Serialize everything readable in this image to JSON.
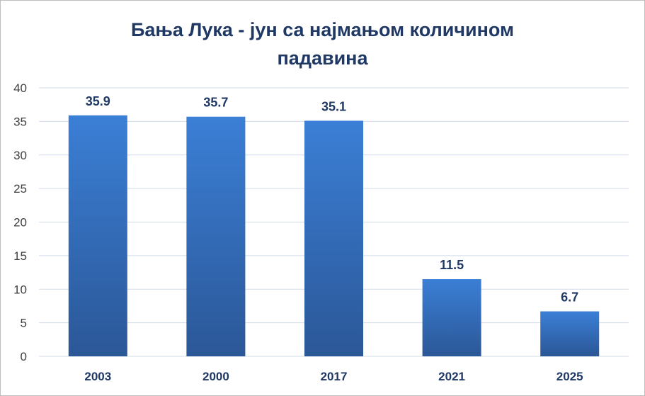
{
  "chart_data": {
    "type": "bar",
    "title_lines": [
      "Бања Лука - јун са најмањом количином",
      "падавина"
    ],
    "categories": [
      "2003",
      "2000",
      "2017",
      "2021",
      "2025"
    ],
    "values": [
      35.9,
      35.7,
      35.1,
      11.5,
      6.7
    ],
    "data_labels": [
      "35.9",
      "35.7",
      "35.1",
      "11.5",
      "6.7"
    ],
    "yticks": [
      "0",
      "5",
      "10",
      "15",
      "20",
      "25",
      "30",
      "35",
      "40"
    ],
    "ylim": [
      0,
      40
    ],
    "xlabel": "",
    "ylabel": "",
    "grid": true,
    "legend": "none",
    "colors": {
      "bar_top": "#3b7fd6",
      "bar_bottom": "#2b5797",
      "title": "#1f3864",
      "label": "#1f3864",
      "tick": "#404040",
      "grid": "#d0dcea"
    }
  }
}
